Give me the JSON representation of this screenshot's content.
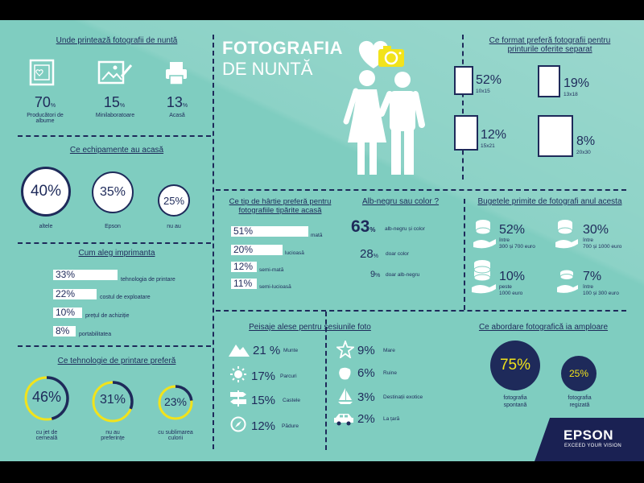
{
  "main_title": {
    "line1": "FOTOGRAFIA",
    "line2": "DE NUNTĂ"
  },
  "colors": {
    "background": "#7fcdc0",
    "navy": "#1e2a5a",
    "yellow": "#f2e31b",
    "white": "#ffffff"
  },
  "where_print": {
    "title": "Unde printează fotografii de nuntă",
    "items": [
      {
        "icon": "photo-album-icon",
        "value": "70",
        "unit": "%",
        "label": "Producători de albume"
      },
      {
        "icon": "photo-edit-icon",
        "value": "15",
        "unit": "%",
        "label": "Minilaboratoare"
      },
      {
        "icon": "printer-icon",
        "value": "13",
        "unit": "%",
        "label": "Acasă"
      }
    ]
  },
  "home_equipment": {
    "title": "Ce echipamente au acasă",
    "items": [
      {
        "value": "40%",
        "label": "altele"
      },
      {
        "value": "35%",
        "label": "Epson"
      },
      {
        "value": "25%",
        "label": "nu au"
      }
    ]
  },
  "choose_printer": {
    "title": "Cum aleg imprimanta",
    "items": [
      {
        "value": "33%",
        "label": "tehnologia de printare",
        "fraction": 0.33
      },
      {
        "value": "22%",
        "label": "costul de exploatare",
        "fraction": 0.22
      },
      {
        "value": "10%",
        "label": "prețul de achiziție",
        "fraction": 0.1
      },
      {
        "value": "8%",
        "label": "portabilitatea",
        "fraction": 0.08
      }
    ]
  },
  "print_tech": {
    "title": "Ce tehnologie de printare preferă",
    "items": [
      {
        "value": "46%",
        "label": "cu jet de cerneală",
        "fraction": 0.46
      },
      {
        "value": "31%",
        "label": "nu au preferințe",
        "fraction": 0.31
      },
      {
        "value": "23%",
        "label": "cu sublimarea culorii",
        "fraction": 0.23
      }
    ]
  },
  "photo_format": {
    "title": "Ce format preferă fotografii pentru printurile oferite separat",
    "items": [
      {
        "value": "52%",
        "label": "10x15"
      },
      {
        "value": "19%",
        "label": "13x18"
      },
      {
        "value": "12%",
        "label": "15x21"
      },
      {
        "value": "8%",
        "label": "20x30"
      }
    ]
  },
  "paper_type": {
    "title": "Ce tip de hârtie preferă pentru fotografiile tipărite acasă",
    "items": [
      {
        "value": "51%",
        "label": "mată",
        "fraction": 0.51
      },
      {
        "value": "20%",
        "label": "lucioasă",
        "fraction": 0.2
      },
      {
        "value": "12%",
        "label": "semi-mată",
        "fraction": 0.12
      },
      {
        "value": "11%",
        "label": "semi-lucioasă",
        "fraction": 0.11
      }
    ]
  },
  "bw_color": {
    "title": "Alb-negru sau color ?",
    "items": [
      {
        "value": "63",
        "unit": "%",
        "label": "alb-negru și color"
      },
      {
        "value": "28",
        "unit": "%",
        "label": "doar color"
      },
      {
        "value": "9",
        "unit": "%",
        "label": "doar alb-negru"
      }
    ]
  },
  "budgets": {
    "title": "Bugetele primite de fotografi anul acesta",
    "items": [
      {
        "value": "52%",
        "label1": "între",
        "label2": "300 și 700 euro"
      },
      {
        "value": "30%",
        "label1": "între",
        "label2": "700 și 1000 euro"
      },
      {
        "value": "10%",
        "label1": "peste",
        "label2": "1000 euro"
      },
      {
        "value": "7%",
        "label1": "între",
        "label2": "100 și 300 euro"
      }
    ]
  },
  "landscapes": {
    "title": "Peisaje alese pentru sesiunile foto",
    "left": [
      {
        "icon": "mountain-icon",
        "value": "21 %",
        "label": "Munte"
      },
      {
        "icon": "sun-icon",
        "value": "17%",
        "label": "Parcuri"
      },
      {
        "icon": "castle-sign-icon",
        "value": "15%",
        "label": "Castele"
      },
      {
        "icon": "compass-icon",
        "value": "12%",
        "label": "Pădure"
      }
    ],
    "right": [
      {
        "icon": "starfish-icon",
        "value": "9%",
        "label": "Mare"
      },
      {
        "icon": "ruins-icon",
        "value": "6%",
        "label": "Ruine"
      },
      {
        "icon": "sailboat-icon",
        "value": "3%",
        "label": "Destinații exotice"
      },
      {
        "icon": "car-icon",
        "value": "2%",
        "label": "La țară"
      }
    ]
  },
  "approach": {
    "title": "Ce abordare fotografică ia amploare",
    "items": [
      {
        "value": "75%",
        "label1": "fotografia",
        "label2": "spontană"
      },
      {
        "value": "25%",
        "label1": "fotografia",
        "label2": "regizată"
      }
    ]
  },
  "brand": {
    "name": "EPSON",
    "tagline": "EXCEED YOUR VISION"
  }
}
